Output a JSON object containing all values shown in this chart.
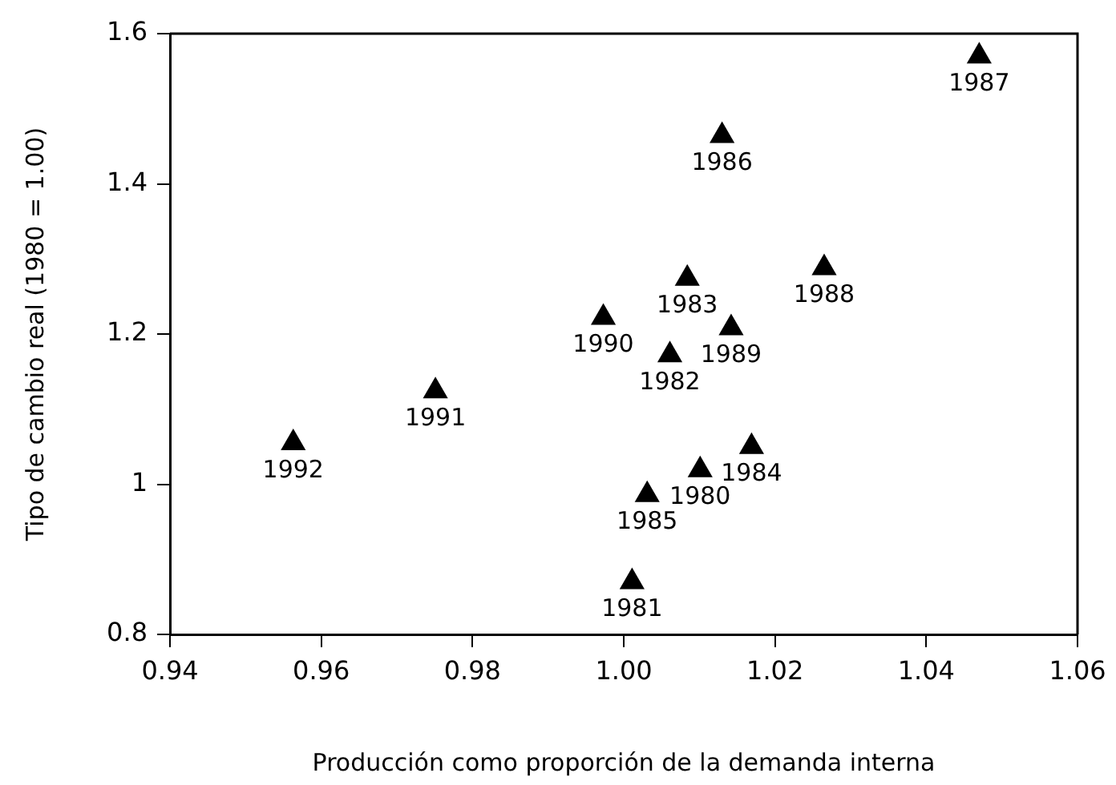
{
  "chart_data": {
    "type": "scatter",
    "xlabel": "Producción como proporción de la demanda interna",
    "ylabel": "Tipo de cambio real (1980 = 1.00)",
    "x": [
      1.0101,
      1.0011,
      1.0061,
      1.0084,
      1.0169,
      1.0031,
      1.013,
      1.047,
      1.0265,
      1.0142,
      0.9973,
      0.9751,
      0.9563
    ],
    "series": [
      {
        "color": "#000000",
        "values": [
          1.019,
          0.87,
          1.172,
          1.274,
          1.05,
          0.986,
          1.464,
          1.57,
          1.288,
          1.208,
          1.222,
          1.124,
          1.055
        ]
      }
    ],
    "annotations": [
      {
        "text": "1980",
        "x": 1.0101,
        "y": 1.019
      },
      {
        "text": "1981",
        "x": 1.0011,
        "y": 0.87
      },
      {
        "text": "1982",
        "x": 1.0061,
        "y": 1.172
      },
      {
        "text": "1983",
        "x": 1.0084,
        "y": 1.274
      },
      {
        "text": "1984",
        "x": 1.0169,
        "y": 1.05
      },
      {
        "text": "1985",
        "x": 1.0031,
        "y": 0.986
      },
      {
        "text": "1986",
        "x": 1.013,
        "y": 1.464
      },
      {
        "text": "1987",
        "x": 1.047,
        "y": 1.57
      },
      {
        "text": "1988",
        "x": 1.0265,
        "y": 1.288
      },
      {
        "text": "1989",
        "x": 1.0142,
        "y": 1.208
      },
      {
        "text": "1990",
        "x": 0.9973,
        "y": 1.222
      },
      {
        "text": "1991",
        "x": 0.9751,
        "y": 1.124
      },
      {
        "text": "1992",
        "x": 0.9563,
        "y": 1.055
      }
    ],
    "xlim": [
      0.94,
      1.06
    ],
    "xticks": [
      0.94,
      0.96,
      0.98,
      {
        "value": 1,
        "label": "1.00"
      },
      1.02,
      1.04,
      1.06
    ],
    "ylim": [
      0.8,
      1.6
    ],
    "yticks": [
      0.8,
      1,
      1.2,
      1.4,
      1.6
    ],
    "grid": false,
    "legend": false,
    "marker": "triangle"
  }
}
